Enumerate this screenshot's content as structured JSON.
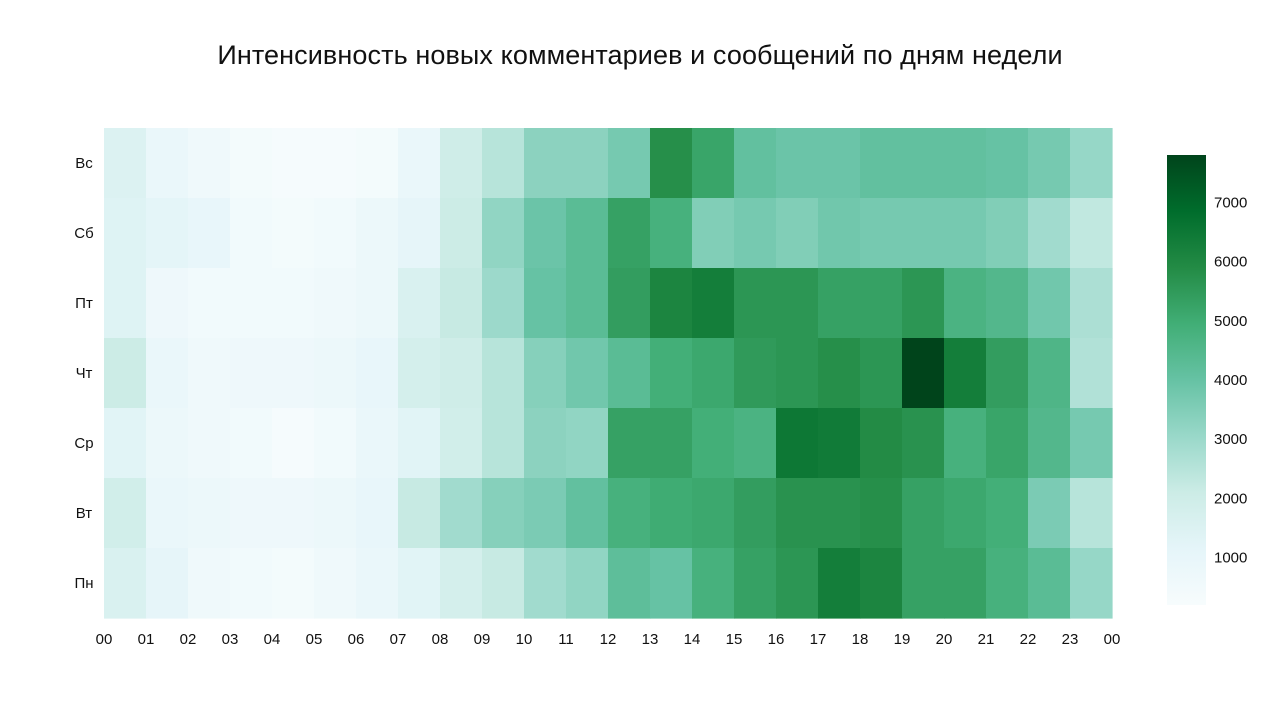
{
  "chart_data": {
    "type": "heatmap",
    "title": "Интенсивность новых комментариев и сообщений по дням недели",
    "xlabel": "",
    "ylabel": "",
    "x_tick_labels": [
      "00",
      "01",
      "02",
      "03",
      "04",
      "05",
      "06",
      "07",
      "08",
      "09",
      "10",
      "11",
      "12",
      "13",
      "14",
      "15",
      "16",
      "17",
      "18",
      "19",
      "20",
      "21",
      "22",
      "23",
      "00"
    ],
    "rows": [
      "Вс",
      "Сб",
      "Пт",
      "Чт",
      "Ср",
      "Вт",
      "Пн"
    ],
    "columns": [
      "00",
      "01",
      "02",
      "03",
      "04",
      "05",
      "06",
      "07",
      "08",
      "09",
      "10",
      "11",
      "12",
      "13",
      "14",
      "15",
      "16",
      "17",
      "18",
      "19",
      "20",
      "21",
      "22",
      "23"
    ],
    "values": [
      [
        1500,
        900,
        600,
        400,
        300,
        300,
        400,
        900,
        2000,
        2500,
        3300,
        3300,
        3700,
        5800,
        5200,
        4100,
        3900,
        3900,
        4100,
        4100,
        4100,
        4000,
        3700,
        3100
      ],
      [
        1400,
        1200,
        1000,
        500,
        400,
        500,
        800,
        1100,
        2100,
        3200,
        3900,
        4300,
        5300,
        4800,
        3500,
        3700,
        3500,
        3800,
        3700,
        3700,
        3700,
        3500,
        2900,
        2300
      ],
      [
        1400,
        700,
        500,
        500,
        500,
        600,
        800,
        1600,
        2200,
        3000,
        4000,
        4300,
        5400,
        6100,
        6300,
        5600,
        5600,
        5300,
        5300,
        5600,
        4700,
        4500,
        3800,
        2700
      ],
      [
        2100,
        900,
        600,
        700,
        700,
        800,
        1000,
        1800,
        2000,
        2500,
        3400,
        3800,
        4300,
        4900,
        5100,
        5500,
        5600,
        5800,
        5600,
        7800,
        6300,
        5400,
        4600,
        2600
      ],
      [
        1300,
        800,
        600,
        500,
        300,
        500,
        900,
        1300,
        1900,
        2500,
        3300,
        3200,
        5300,
        5300,
        4900,
        4700,
        6500,
        6400,
        5900,
        5700,
        4800,
        5200,
        4500,
        3700
      ],
      [
        1900,
        900,
        800,
        700,
        700,
        800,
        1000,
        2200,
        2900,
        3400,
        3600,
        4100,
        4800,
        5000,
        5100,
        5400,
        5700,
        5700,
        5800,
        5300,
        5100,
        4900,
        3600,
        2500
      ],
      [
        1600,
        1100,
        600,
        500,
        400,
        600,
        900,
        1300,
        1800,
        2200,
        2900,
        3200,
        4200,
        4000,
        4800,
        5300,
        5600,
        6300,
        6100,
        5300,
        5300,
        4800,
        4300,
        3100
      ]
    ],
    "colorbar": {
      "min": 200,
      "max": 7800,
      "ticks": [
        1000,
        2000,
        3000,
        4000,
        5000,
        6000,
        7000
      ],
      "colors": [
        "#f7fcfd",
        "#e5f5f9",
        "#ccece6",
        "#99d8c9",
        "#66c2a4",
        "#41ae76",
        "#238b45",
        "#006d2c",
        "#00441b"
      ]
    },
    "grid": false,
    "legend": "colorbar-right"
  }
}
